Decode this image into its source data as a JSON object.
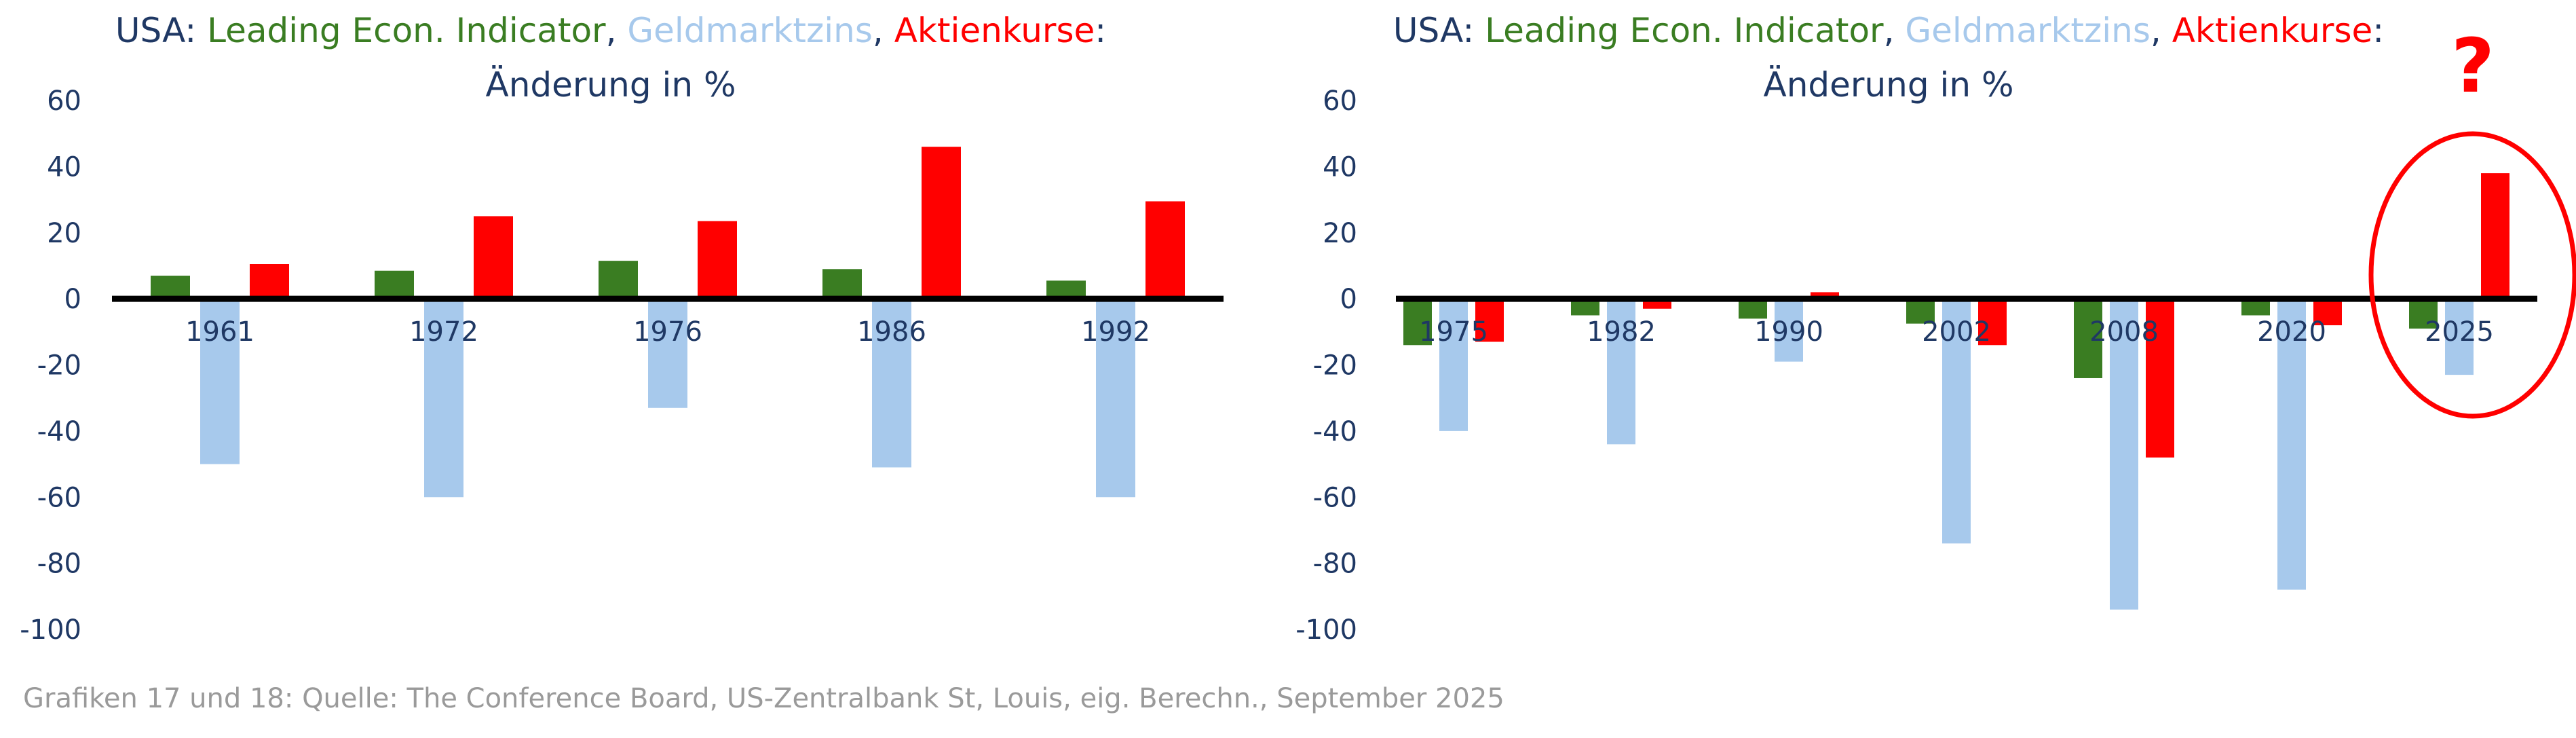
{
  "colors": {
    "leading": "#3a7d22",
    "geldmarkt": "#a7c9ec",
    "aktien": "#ff0000",
    "text": "#1f3864",
    "footer": "#9a9a9a"
  },
  "chart_data": [
    {
      "type": "bar",
      "title": {
        "prefix": "USA: ",
        "s1": "Leading Econ. Indicator",
        "sep1": ", ",
        "s2": "Geldmarktzins",
        "sep2": ", ",
        "s3": "Aktienkurse",
        "suffix": ":",
        "line2": "Änderung in %"
      },
      "categories": [
        "1961",
        "1972",
        "1976",
        "1986",
        "1992"
      ],
      "series": [
        {
          "name": "Leading Econ. Indicator",
          "values": [
            7,
            8.5,
            11.5,
            9,
            5.5
          ]
        },
        {
          "name": "Geldmarktzins",
          "values": [
            -50,
            -60,
            -33,
            -51,
            -60
          ]
        },
        {
          "name": "Aktienkurse",
          "values": [
            10.5,
            25,
            23.5,
            46,
            29.5
          ]
        }
      ],
      "yticks": [
        "60",
        "40",
        "20",
        "0",
        "-20",
        "-40",
        "-60",
        "-80",
        "-100"
      ],
      "ylim": [
        -100,
        60
      ]
    },
    {
      "type": "bar",
      "title": {
        "prefix": "USA: ",
        "s1": "Leading Econ. Indicator",
        "sep1": ", ",
        "s2": "Geldmarktzins",
        "sep2": ", ",
        "s3": "Aktienkurse",
        "suffix": ":",
        "line2": "Änderung in %"
      },
      "categories": [
        "1975",
        "1982",
        "1990",
        "2002",
        "2008",
        "2020",
        "2025"
      ],
      "series": [
        {
          "name": "Leading Econ. Indicator",
          "values": [
            -14,
            -5,
            -6,
            -7.5,
            -24,
            -5,
            -9
          ]
        },
        {
          "name": "Geldmarktzins",
          "values": [
            -40,
            -44,
            -19,
            -74,
            -94,
            -88,
            -23
          ]
        },
        {
          "name": "Aktienkurse",
          "values": [
            -13,
            -3,
            2,
            -14,
            -48,
            -8,
            38
          ]
        }
      ],
      "yticks": [
        "60",
        "40",
        "20",
        "0",
        "-20",
        "-40",
        "-60",
        "-80",
        "-100"
      ],
      "ylim": [
        -100,
        60
      ],
      "annotation": {
        "text": "?",
        "highlight_category": "2025"
      }
    }
  ],
  "footer": "Grafiken 17 und 18: Quelle: The Conference Board, US-Zentralbank St, Louis, eig. Berechn., September 2025"
}
